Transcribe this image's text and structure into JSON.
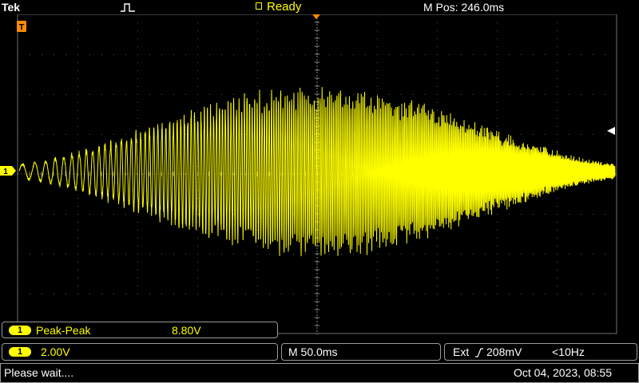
{
  "topbar": {
    "brand": "Tek",
    "trigger_icon": "pulse-trigger-icon",
    "status": "Ready",
    "mpos": "M Pos: 246.0ms"
  },
  "channel": {
    "number": "1",
    "color": "#ffff00"
  },
  "trigger_marker": {
    "label": "T"
  },
  "measurement": {
    "name": "Peak-Peak",
    "value": "8.80V"
  },
  "vertical": {
    "scale": "2.00V"
  },
  "horizontal": {
    "scale": "M 50.0ms"
  },
  "trigger_info": {
    "source": "Ext",
    "slope_icon": "rising-edge-icon",
    "level": "208mV",
    "freq": "<10Hz"
  },
  "message": "Please wait....",
  "datetime": "Oct 04, 2023, 08:55"
}
